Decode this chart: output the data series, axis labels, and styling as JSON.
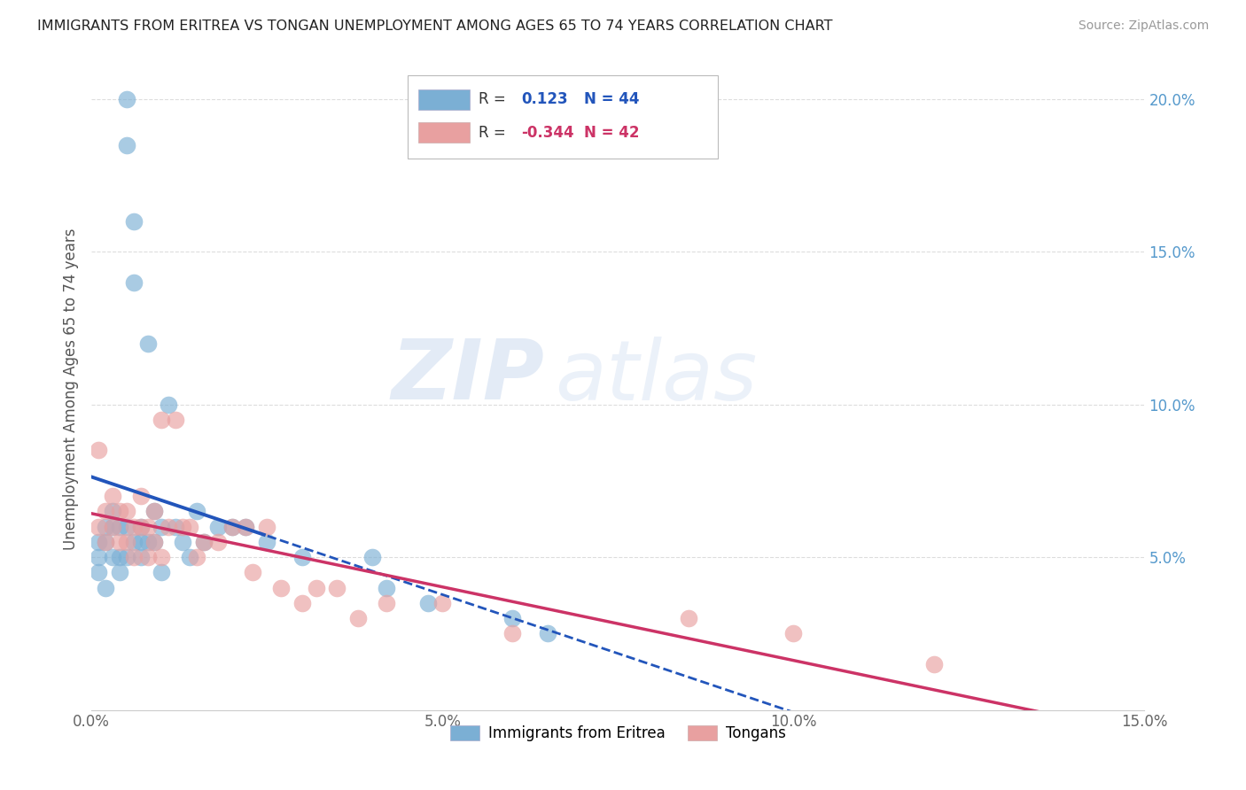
{
  "title": "IMMIGRANTS FROM ERITREA VS TONGAN UNEMPLOYMENT AMONG AGES 65 TO 74 YEARS CORRELATION CHART",
  "source": "Source: ZipAtlas.com",
  "ylabel": "Unemployment Among Ages 65 to 74 years",
  "xlim": [
    0.0,
    0.15
  ],
  "ylim": [
    0.0,
    0.21
  ],
  "x_ticks": [
    0.0,
    0.05,
    0.1,
    0.15
  ],
  "x_tick_labels": [
    "0.0%",
    "5.0%",
    "10.0%",
    "15.0%"
  ],
  "y_ticks_right": [
    0.0,
    0.05,
    0.1,
    0.15,
    0.2
  ],
  "y_tick_labels_right": [
    "",
    "5.0%",
    "10.0%",
    "15.0%",
    "20.0%"
  ],
  "legend_label1": "Immigrants from Eritrea",
  "legend_label2": "Tongans",
  "r1": "0.123",
  "n1": "44",
  "r2": "-0.344",
  "n2": "42",
  "color1": "#7bafd4",
  "color2": "#e8a0a0",
  "line_color1": "#2255bb",
  "line_color2": "#cc3366",
  "watermark_zip": "ZIP",
  "watermark_atlas": "atlas",
  "scatter1_x": [
    0.001,
    0.001,
    0.001,
    0.002,
    0.002,
    0.002,
    0.003,
    0.003,
    0.003,
    0.004,
    0.004,
    0.004,
    0.005,
    0.005,
    0.005,
    0.005,
    0.006,
    0.006,
    0.006,
    0.007,
    0.007,
    0.007,
    0.008,
    0.008,
    0.009,
    0.009,
    0.01,
    0.01,
    0.011,
    0.012,
    0.013,
    0.014,
    0.015,
    0.016,
    0.018,
    0.02,
    0.022,
    0.025,
    0.03,
    0.04,
    0.042,
    0.048,
    0.06,
    0.065
  ],
  "scatter1_y": [
    0.055,
    0.05,
    0.045,
    0.06,
    0.055,
    0.04,
    0.065,
    0.06,
    0.05,
    0.06,
    0.05,
    0.045,
    0.2,
    0.185,
    0.06,
    0.05,
    0.16,
    0.14,
    0.055,
    0.06,
    0.055,
    0.05,
    0.12,
    0.055,
    0.065,
    0.055,
    0.06,
    0.045,
    0.1,
    0.06,
    0.055,
    0.05,
    0.065,
    0.055,
    0.06,
    0.06,
    0.06,
    0.055,
    0.05,
    0.05,
    0.04,
    0.035,
    0.03,
    0.025
  ],
  "scatter2_x": [
    0.001,
    0.001,
    0.002,
    0.002,
    0.003,
    0.003,
    0.004,
    0.004,
    0.005,
    0.005,
    0.006,
    0.006,
    0.007,
    0.007,
    0.008,
    0.008,
    0.009,
    0.009,
    0.01,
    0.01,
    0.011,
    0.012,
    0.013,
    0.014,
    0.015,
    0.016,
    0.018,
    0.02,
    0.022,
    0.023,
    0.025,
    0.027,
    0.03,
    0.032,
    0.035,
    0.038,
    0.042,
    0.05,
    0.06,
    0.085,
    0.1,
    0.12
  ],
  "scatter2_y": [
    0.085,
    0.06,
    0.065,
    0.055,
    0.07,
    0.06,
    0.065,
    0.055,
    0.065,
    0.055,
    0.06,
    0.05,
    0.07,
    0.06,
    0.06,
    0.05,
    0.065,
    0.055,
    0.095,
    0.05,
    0.06,
    0.095,
    0.06,
    0.06,
    0.05,
    0.055,
    0.055,
    0.06,
    0.06,
    0.045,
    0.06,
    0.04,
    0.035,
    0.04,
    0.04,
    0.03,
    0.035,
    0.035,
    0.025,
    0.03,
    0.025,
    0.015
  ]
}
